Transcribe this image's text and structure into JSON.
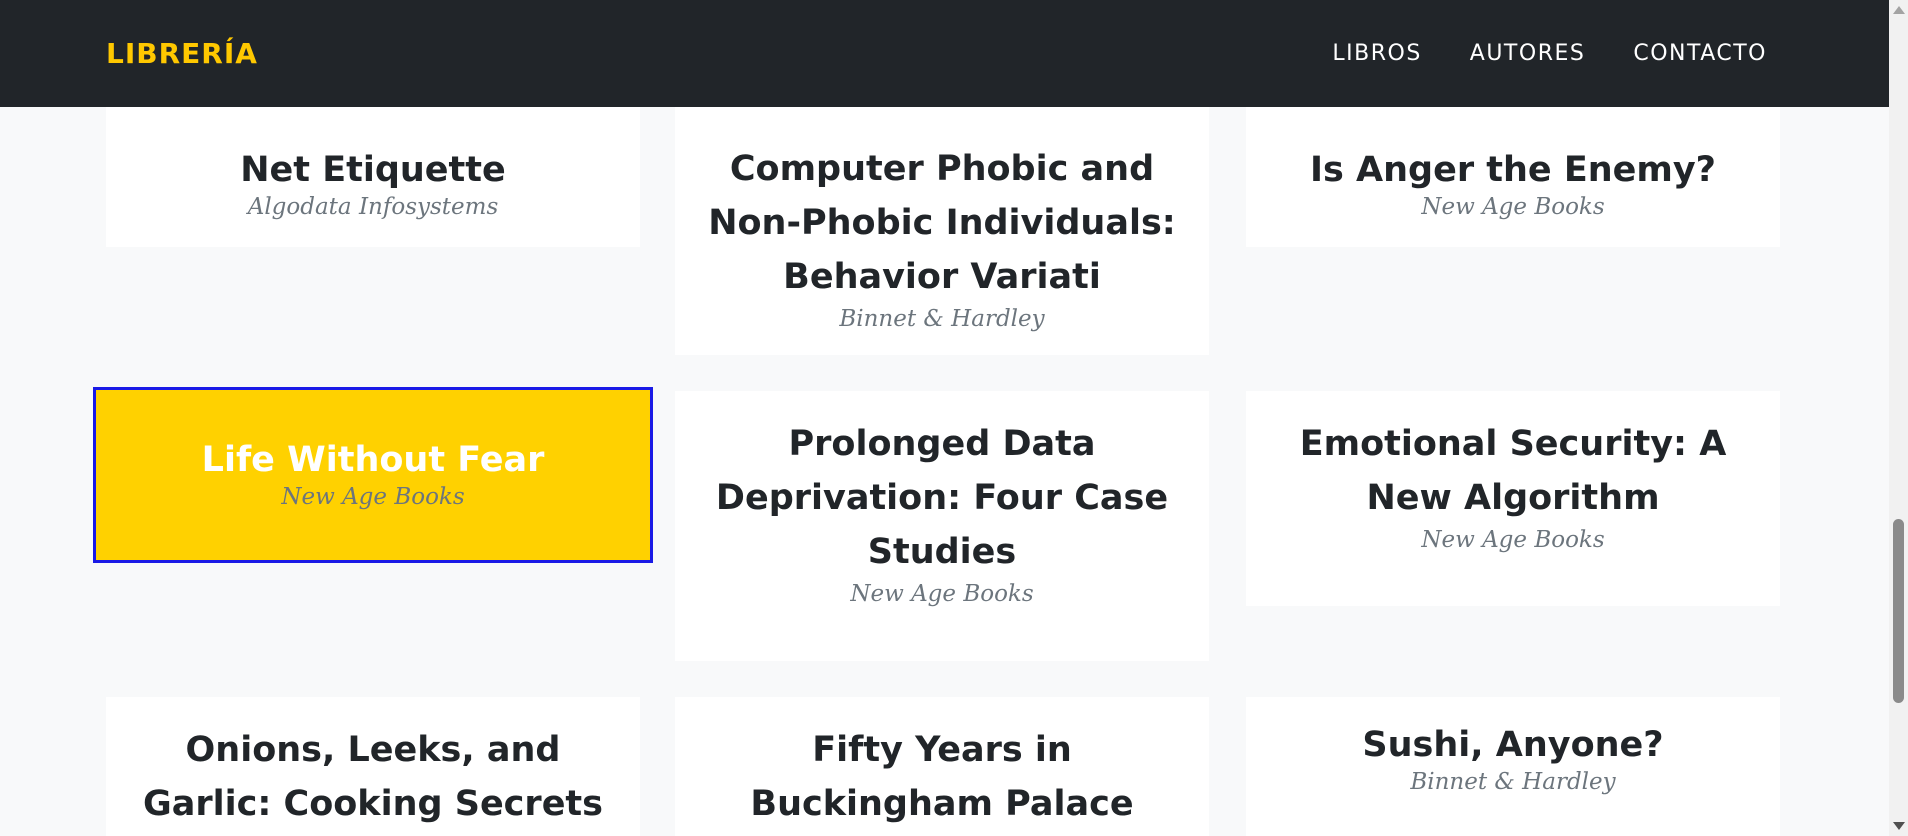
{
  "header": {
    "brand": "LIBRERÍA",
    "nav": [
      "LIBROS",
      "AUTORES",
      "CONTACTO"
    ]
  },
  "books": [
    {
      "title": "Net Etiquette",
      "publisher": "Algodata Infosystems"
    },
    {
      "title": "Computer Phobic and Non-Phobic Individuals: Behavior Variati",
      "publisher": "Binnet & Hardley"
    },
    {
      "title": "Is Anger the Enemy?",
      "publisher": "New Age Books"
    },
    {
      "title": "Life Without Fear",
      "publisher": "New Age Books"
    },
    {
      "title": "Prolonged Data Deprivation: Four Case Studies",
      "publisher": "New Age Books"
    },
    {
      "title": "Emotional Security: A New Algorithm",
      "publisher": "New Age Books"
    },
    {
      "title": "Onions, Leeks, and Garlic: Cooking Secrets",
      "publisher": ""
    },
    {
      "title": "Fifty Years in Buckingham Palace",
      "publisher": ""
    },
    {
      "title": "Sushi, Anyone?",
      "publisher": "Binnet & Hardley"
    }
  ],
  "colors": {
    "navbar": "#212529",
    "brand": "#ffc800",
    "active_card": "#ffd100",
    "active_border": "#1a1ae6",
    "page_bg": "#f8f9fa"
  },
  "active_book": "Life Without Fear"
}
